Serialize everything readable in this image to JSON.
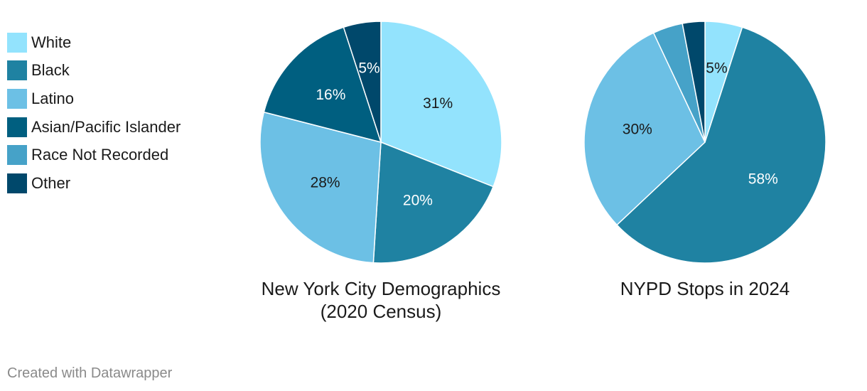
{
  "legend": [
    {
      "label": "White",
      "color": "#93e3fd"
    },
    {
      "label": "Black",
      "color": "#1f82a2"
    },
    {
      "label": "Latino",
      "color": "#6cc0e5"
    },
    {
      "label": "Asian/Pacific Islander",
      "color": "#005f80"
    },
    {
      "label": "Race Not Recorded",
      "color": "#46a2c8"
    },
    {
      "label": "Other",
      "color": "#00486b"
    }
  ],
  "chart_data": [
    {
      "type": "pie",
      "title": "New York City Demographics\n(2020 Census)",
      "slices": [
        {
          "name": "White",
          "value": 31,
          "label": "31%",
          "color": "#93e3fd",
          "label_color": "#1a1a1a"
        },
        {
          "name": "Black",
          "value": 20,
          "label": "20%",
          "color": "#1f82a2",
          "label_color": "#ffffff"
        },
        {
          "name": "Latino",
          "value": 28,
          "label": "28%",
          "color": "#6cc0e5",
          "label_color": "#1a1a1a"
        },
        {
          "name": "Asian/Pacific Islander",
          "value": 16,
          "label": "16%",
          "color": "#005f80",
          "label_color": "#ffffff"
        },
        {
          "name": "Other",
          "value": 5,
          "label": "5%",
          "color": "#00486b",
          "label_color": "#ffffff"
        }
      ]
    },
    {
      "type": "pie",
      "title": "NYPD Stops in 2024",
      "slices": [
        {
          "name": "White",
          "value": 5,
          "label": "5%",
          "color": "#93e3fd",
          "label_color": "#1a1a1a"
        },
        {
          "name": "Black",
          "value": 58,
          "label": "58%",
          "color": "#1f82a2",
          "label_color": "#ffffff"
        },
        {
          "name": "Latino",
          "value": 30,
          "label": "30%",
          "color": "#6cc0e5",
          "label_color": "#1a1a1a"
        },
        {
          "name": "Race Not Recorded",
          "value": 4,
          "label": "",
          "color": "#46a2c8",
          "label_color": "#ffffff"
        },
        {
          "name": "Other",
          "value": 3,
          "label": "",
          "color": "#00486b",
          "label_color": "#ffffff"
        }
      ]
    }
  ],
  "credit": "Created with Datawrapper"
}
